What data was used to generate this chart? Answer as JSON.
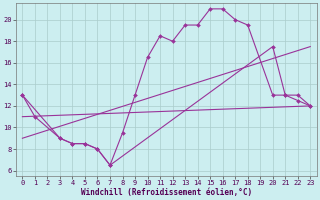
{
  "xlabel": "Windchill (Refroidissement éolien,°C)",
  "bg_color": "#cceef0",
  "grid_color": "#aacccc",
  "line_color": "#993399",
  "xlim": [
    -0.5,
    23.5
  ],
  "ylim": [
    5.5,
    21.5
  ],
  "yticks": [
    6,
    8,
    10,
    12,
    14,
    16,
    18,
    20
  ],
  "xticks": [
    0,
    1,
    2,
    3,
    4,
    5,
    6,
    7,
    8,
    9,
    10,
    11,
    12,
    13,
    14,
    15,
    16,
    17,
    18,
    19,
    20,
    21,
    22,
    23
  ],
  "series1_x": [
    0,
    1,
    3,
    4,
    5,
    6,
    7,
    8,
    9,
    10,
    11,
    12,
    13,
    14,
    15,
    16,
    17,
    18,
    20,
    21,
    22,
    23
  ],
  "series1_y": [
    13,
    11,
    9,
    8.5,
    8.5,
    8,
    6.5,
    9.5,
    13,
    16.5,
    18.5,
    18,
    19.5,
    19.5,
    21,
    21,
    20,
    19.5,
    13,
    13,
    12.5,
    12
  ],
  "series2_x": [
    0,
    3,
    4,
    5,
    6,
    7,
    20,
    21,
    22,
    23
  ],
  "series2_y": [
    13,
    9,
    8.5,
    8.5,
    8,
    6.5,
    17.5,
    13,
    13,
    12
  ],
  "series3_x": [
    0,
    23
  ],
  "series3_y": [
    11,
    12
  ],
  "series4_x": [
    0,
    23
  ],
  "series4_y": [
    9,
    17.5
  ],
  "tick_fontsize": 5,
  "xlabel_fontsize": 5.5
}
